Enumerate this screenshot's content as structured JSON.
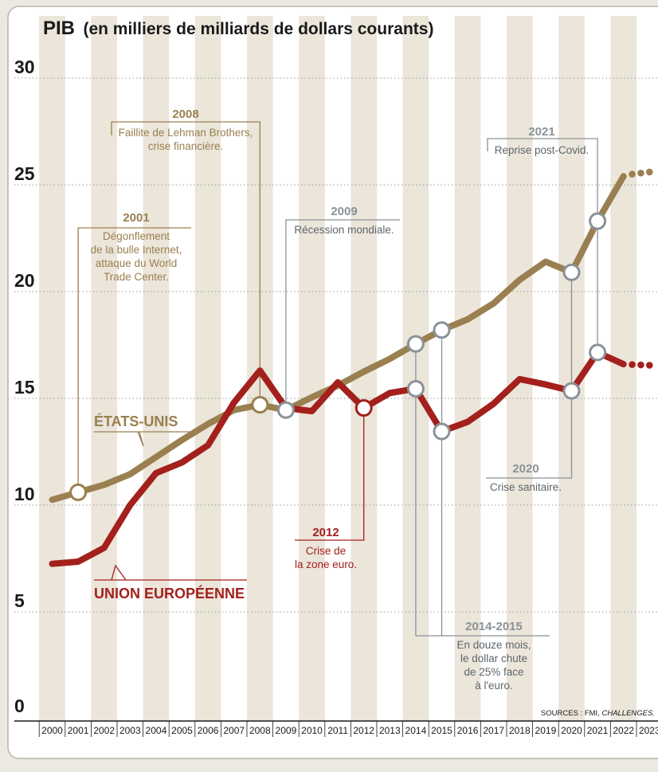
{
  "title": "PIB",
  "subtitle": "(en milliers de milliards de dollars courants)",
  "source_prefix": "SOURCES : FMI, ",
  "source_italic": "CHALLENGES.",
  "colors": {
    "us": "#9a8050",
    "eu": "#a3201c",
    "gray_annotation": "#8a9298",
    "stripe": "#ebe5da",
    "background": "#ffffff"
  },
  "chart_data": {
    "type": "line",
    "title": "PIB",
    "subtitle": "(en milliers de milliards de dollars courants)",
    "ylim": [
      0,
      30
    ],
    "yticks": [
      0,
      5,
      10,
      15,
      20,
      25,
      30
    ],
    "x": [
      "2000",
      "2001",
      "2002",
      "2003",
      "2004",
      "2005",
      "2006",
      "2007",
      "2008",
      "2009",
      "2010",
      "2011",
      "2012",
      "2013",
      "2014",
      "2015",
      "2016",
      "2017",
      "2018",
      "2019",
      "2020",
      "2021",
      "2022",
      "2023"
    ],
    "grid": "horizontal dotted",
    "series": [
      {
        "name": "ÉTATS-UNIS",
        "key": "us",
        "values": [
          10.25,
          10.6,
          10.95,
          11.45,
          12.25,
          13.05,
          13.8,
          14.45,
          14.7,
          14.45,
          15.05,
          15.6,
          16.25,
          16.85,
          17.55,
          18.2,
          18.7,
          19.45,
          20.55,
          21.4,
          20.9,
          23.3,
          25.4,
          null
        ],
        "projection": [
          25.45,
          25.6
        ]
      },
      {
        "name": "UNION EUROPÉENNE",
        "key": "eu",
        "values": [
          7.25,
          7.35,
          8.0,
          10.0,
          11.5,
          12.0,
          12.8,
          14.8,
          16.3,
          14.55,
          14.4,
          15.75,
          14.55,
          15.25,
          15.45,
          13.45,
          13.9,
          14.75,
          15.9,
          15.65,
          15.35,
          17.15,
          16.6,
          null
        ],
        "projection": [
          16.6,
          16.55
        ]
      }
    ],
    "annotations": [
      {
        "year": "2001",
        "lines": [
          "Dégonflement",
          "de la bulle Internet,",
          "attaque du World",
          "Trade Center."
        ]
      },
      {
        "year": "2008",
        "lines": [
          "Faillite de Lehman Brothers,",
          "crise financière."
        ]
      },
      {
        "year": "2009",
        "lines": [
          "Récession mondiale."
        ]
      },
      {
        "year": "2012",
        "lines": [
          "Crise de",
          "la zone euro."
        ]
      },
      {
        "year": "2014-2015",
        "lines": [
          "En douze mois,",
          "le dollar chute",
          "de 25% face",
          "à l'euro."
        ]
      },
      {
        "year": "2020",
        "lines": [
          "Crise sanitaire."
        ]
      },
      {
        "year": "2021",
        "lines": [
          "Reprise post-Covid."
        ]
      }
    ]
  }
}
